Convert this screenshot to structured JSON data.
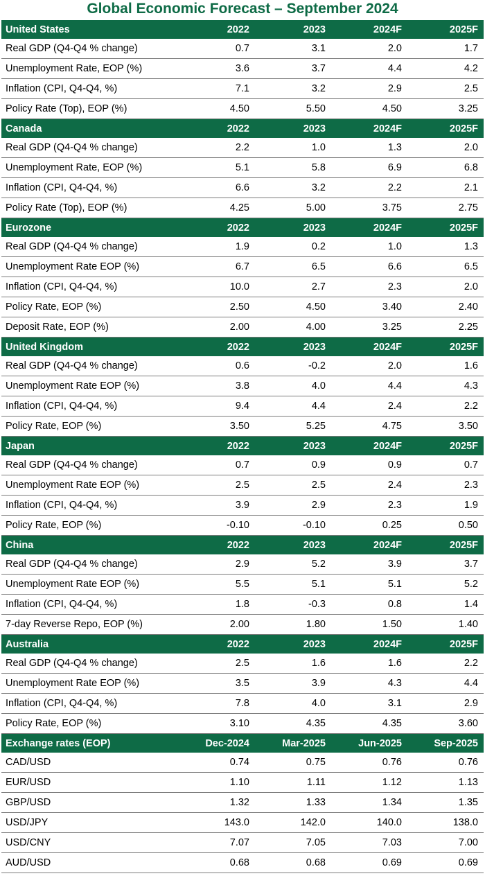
{
  "title": "Global Economic Forecast – September 2024",
  "colors": {
    "header_bg": "#0e6b46",
    "header_text": "#ffffff",
    "title": "#0e6b46"
  },
  "sections": [
    {
      "name": "United States",
      "columns": [
        "2022",
        "2023",
        "2024F",
        "2025F"
      ],
      "rows": [
        {
          "label": "Real GDP (Q4-Q4 % change)",
          "values": [
            "0.7",
            "3.1",
            "2.0",
            "1.7"
          ]
        },
        {
          "label": "Unemployment Rate, EOP (%)",
          "values": [
            "3.6",
            "3.7",
            "4.4",
            "4.2"
          ]
        },
        {
          "label": "Inflation (CPI, Q4-Q4, %)",
          "values": [
            "7.1",
            "3.2",
            "2.9",
            "2.5"
          ]
        },
        {
          "label": "Policy Rate (Top), EOP (%)",
          "values": [
            "4.50",
            "5.50",
            "4.50",
            "3.25"
          ]
        }
      ]
    },
    {
      "name": "Canada",
      "columns": [
        "2022",
        "2023",
        "2024F",
        "2025F"
      ],
      "rows": [
        {
          "label": "Real GDP (Q4-Q4 % change)",
          "values": [
            "2.2",
            "1.0",
            "1.3",
            "2.0"
          ]
        },
        {
          "label": "Unemployment Rate, EOP (%)",
          "values": [
            "5.1",
            "5.8",
            "6.9",
            "6.8"
          ]
        },
        {
          "label": "Inflation (CPI, Q4-Q4, %)",
          "values": [
            "6.6",
            "3.2",
            "2.2",
            "2.1"
          ]
        },
        {
          "label": "Policy Rate (Top), EOP (%)",
          "values": [
            "4.25",
            "5.00",
            "3.75",
            "2.75"
          ]
        }
      ]
    },
    {
      "name": "Eurozone",
      "columns": [
        "2022",
        "2023",
        "2024F",
        "2025F"
      ],
      "rows": [
        {
          "label": "Real GDP (Q4-Q4 % change)",
          "values": [
            "1.9",
            "0.2",
            "1.0",
            "1.3"
          ]
        },
        {
          "label": "Unemployment Rate EOP (%)",
          "values": [
            "6.7",
            "6.5",
            "6.6",
            "6.5"
          ]
        },
        {
          "label": "Inflation (CPI, Q4-Q4, %)",
          "values": [
            "10.0",
            "2.7",
            "2.3",
            "2.0"
          ]
        },
        {
          "label": "Policy Rate, EOP (%)",
          "values": [
            "2.50",
            "4.50",
            "3.40",
            "2.40"
          ]
        },
        {
          "label": "Deposit Rate, EOP (%)",
          "values": [
            "2.00",
            "4.00",
            "3.25",
            "2.25"
          ]
        }
      ]
    },
    {
      "name": "United Kingdom",
      "columns": [
        "2022",
        "2023",
        "2024F",
        "2025F"
      ],
      "rows": [
        {
          "label": "Real GDP (Q4-Q4 % change)",
          "values": [
            "0.6",
            "-0.2",
            "2.0",
            "1.6"
          ]
        },
        {
          "label": "Unemployment Rate EOP (%)",
          "values": [
            "3.8",
            "4.0",
            "4.4",
            "4.3"
          ]
        },
        {
          "label": "Inflation (CPI, Q4-Q4, %)",
          "values": [
            "9.4",
            "4.4",
            "2.4",
            "2.2"
          ]
        },
        {
          "label": "Policy Rate, EOP (%)",
          "values": [
            "3.50",
            "5.25",
            "4.75",
            "3.50"
          ]
        }
      ]
    },
    {
      "name": "Japan",
      "columns": [
        "2022",
        "2023",
        "2024F",
        "2025F"
      ],
      "rows": [
        {
          "label": "Real GDP (Q4-Q4 % change)",
          "values": [
            "0.7",
            "0.9",
            "0.9",
            "0.7"
          ]
        },
        {
          "label": "Unemployment Rate EOP (%)",
          "values": [
            "2.5",
            "2.5",
            "2.4",
            "2.3"
          ]
        },
        {
          "label": "Inflation (CPI, Q4-Q4, %)",
          "values": [
            "3.9",
            "2.9",
            "2.3",
            "1.9"
          ]
        },
        {
          "label": "Policy Rate, EOP (%)",
          "values": [
            "-0.10",
            "-0.10",
            "0.25",
            "0.50"
          ]
        }
      ]
    },
    {
      "name": "China",
      "columns": [
        "2022",
        "2023",
        "2024F",
        "2025F"
      ],
      "rows": [
        {
          "label": "Real GDP (Q4-Q4 % change)",
          "values": [
            "2.9",
            "5.2",
            "3.9",
            "3.7"
          ]
        },
        {
          "label": "Unemployment Rate EOP (%)",
          "values": [
            "5.5",
            "5.1",
            "5.1",
            "5.2"
          ]
        },
        {
          "label": "Inflation (CPI, Q4-Q4, %)",
          "values": [
            "1.8",
            "-0.3",
            "0.8",
            "1.4"
          ]
        },
        {
          "label": "7-day Reverse Repo, EOP (%)",
          "values": [
            "2.00",
            "1.80",
            "1.50",
            "1.40"
          ]
        }
      ]
    },
    {
      "name": "Australia",
      "columns": [
        "2022",
        "2023",
        "2024F",
        "2025F"
      ],
      "rows": [
        {
          "label": "Real GDP (Q4-Q4 % change)",
          "values": [
            "2.5",
            "1.6",
            "1.6",
            "2.2"
          ]
        },
        {
          "label": "Unemployment Rate EOP (%)",
          "values": [
            "3.5",
            "3.9",
            "4.3",
            "4.4"
          ]
        },
        {
          "label": "Inflation (CPI, Q4-Q4, %)",
          "values": [
            "7.8",
            "4.0",
            "3.1",
            "2.9"
          ]
        },
        {
          "label": "Policy Rate, EOP (%)",
          "values": [
            "3.10",
            "4.35",
            "4.35",
            "3.60"
          ]
        }
      ]
    },
    {
      "name": "Exchange rates (EOP)",
      "columns": [
        "Dec-2024",
        "Mar-2025",
        "Jun-2025",
        "Sep-2025"
      ],
      "rows": [
        {
          "label": "CAD/USD",
          "values": [
            "0.74",
            "0.75",
            "0.76",
            "0.76"
          ]
        },
        {
          "label": "EUR/USD",
          "values": [
            "1.10",
            "1.11",
            "1.12",
            "1.13"
          ]
        },
        {
          "label": "GBP/USD",
          "values": [
            "1.32",
            "1.33",
            "1.34",
            "1.35"
          ]
        },
        {
          "label": "USD/JPY",
          "values": [
            "143.0",
            "142.0",
            "140.0",
            "138.0"
          ]
        },
        {
          "label": "USD/CNY",
          "values": [
            "7.07",
            "7.05",
            "7.03",
            "7.00"
          ]
        },
        {
          "label": "AUD/USD",
          "values": [
            "0.68",
            "0.68",
            "0.69",
            "0.69"
          ]
        }
      ]
    }
  ]
}
